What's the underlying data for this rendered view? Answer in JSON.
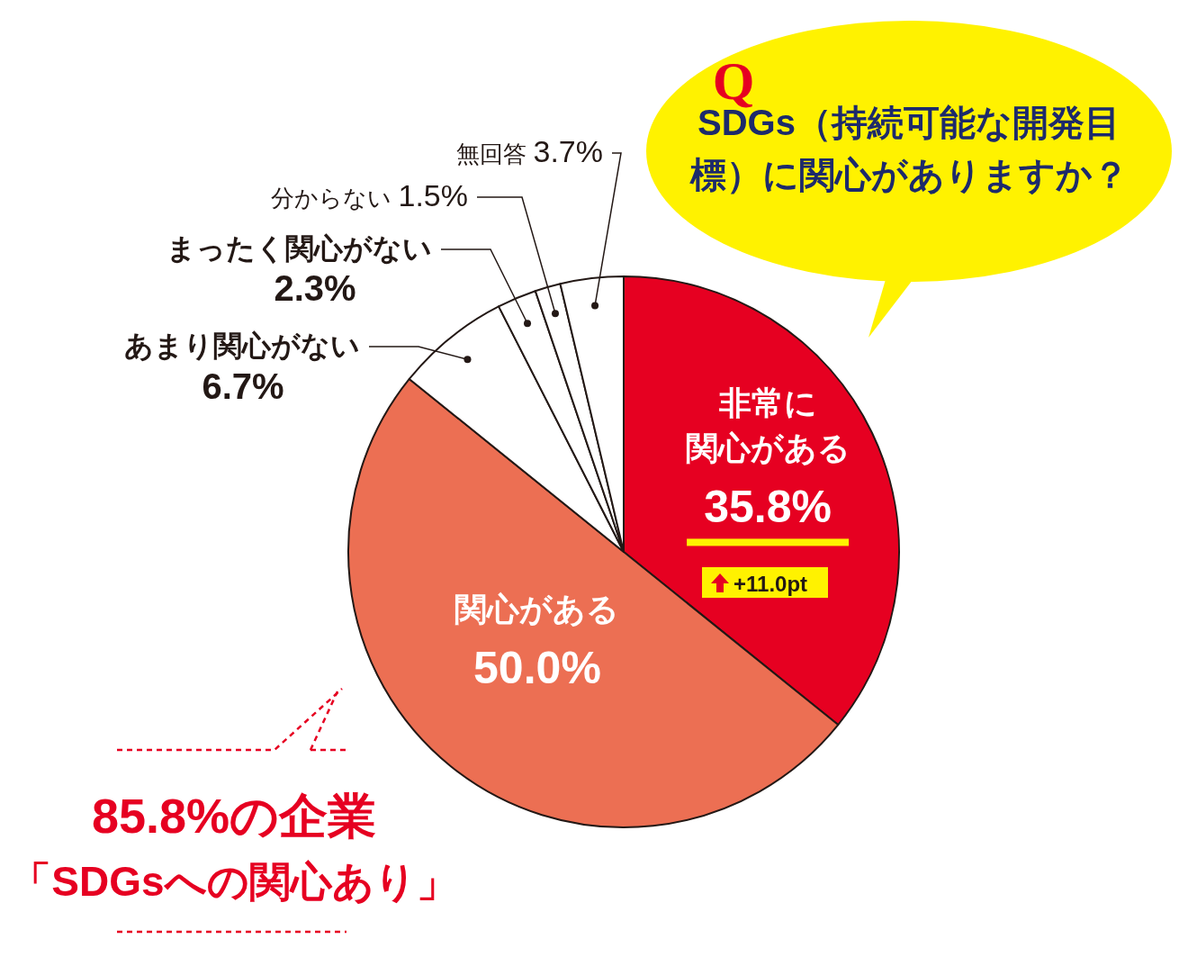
{
  "chart_data": {
    "type": "pie",
    "title": "SDGs（持続可能な開発目標）に関心がありますか？",
    "categories": [
      "非常に関心がある",
      "関心がある",
      "あまり関心がない",
      "まったく関心がない",
      "分からない",
      "無回答"
    ],
    "values": [
      35.8,
      50.0,
      6.7,
      2.3,
      1.5,
      3.7
    ],
    "colors": [
      "#e60021",
      "#ec6f53",
      "#ffffff",
      "#ffffff",
      "#ffffff",
      "#ffffff"
    ],
    "value_labels": [
      "35.8%",
      "50.0%",
      "6.7%",
      "2.3%",
      "1.5%",
      "3.7%"
    ],
    "annotations": [
      "Q",
      "+11.0pt",
      "85.8%の企業",
      "「SDGsへの関心あり」"
    ]
  }
}
